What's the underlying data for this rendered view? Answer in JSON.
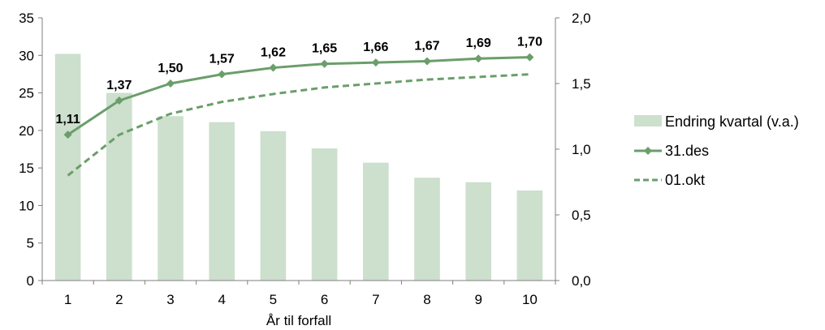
{
  "chart_data": {
    "type": "bar",
    "categories": [
      "1",
      "2",
      "3",
      "4",
      "5",
      "6",
      "7",
      "8",
      "9",
      "10"
    ],
    "xlabel": "År til forfall",
    "ylabel_left": "",
    "ylabel_right": "",
    "ylim_left": [
      0,
      35
    ],
    "yticks_left": [
      "0",
      "5",
      "10",
      "15",
      "20",
      "25",
      "30",
      "35"
    ],
    "ylim_right": [
      0,
      2.0
    ],
    "yticks_right": [
      "0,0",
      "0,5",
      "1,0",
      "1,5",
      "2,0"
    ],
    "grid": false,
    "legend_position": "right",
    "series": [
      {
        "name": "Endring kvartal (v.a.)",
        "type": "bar",
        "axis": "left",
        "color": "#cddfcd",
        "values": [
          30.2,
          25.0,
          21.9,
          21.1,
          19.9,
          17.6,
          15.7,
          13.7,
          13.1,
          12.0
        ]
      },
      {
        "name": "31.des",
        "type": "line",
        "axis": "right",
        "color": "#6a9e6a",
        "marker": "diamond",
        "values": [
          1.11,
          1.37,
          1.5,
          1.57,
          1.62,
          1.65,
          1.66,
          1.67,
          1.69,
          1.7
        ],
        "labels": [
          "1,11",
          "1,37",
          "1,50",
          "1,57",
          "1,62",
          "1,65",
          "1,66",
          "1,67",
          "1,69",
          "1,70"
        ]
      },
      {
        "name": "01.okt",
        "type": "line",
        "axis": "right",
        "color": "#6a9e6a",
        "dash": true,
        "values": [
          0.8,
          1.11,
          1.27,
          1.36,
          1.42,
          1.47,
          1.5,
          1.53,
          1.55,
          1.57
        ]
      }
    ]
  }
}
